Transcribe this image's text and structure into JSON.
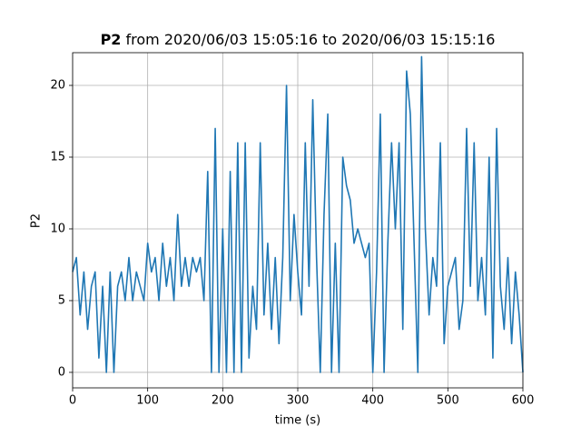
{
  "chart_data": {
    "type": "line",
    "title": [
      "P2",
      "from 2020/06/03 15:05:16 to 2020/06/03 15:15:16"
    ],
    "xlabel": "time (s)",
    "ylabel": "P2",
    "x": [
      0,
      5,
      10,
      15,
      20,
      25,
      30,
      35,
      40,
      45,
      50,
      55,
      60,
      65,
      70,
      75,
      80,
      85,
      90,
      95,
      100,
      105,
      110,
      115,
      120,
      125,
      130,
      135,
      140,
      145,
      150,
      155,
      160,
      165,
      170,
      175,
      180,
      185,
      190,
      195,
      200,
      205,
      210,
      215,
      220,
      225,
      230,
      235,
      240,
      245,
      250,
      255,
      260,
      265,
      270,
      275,
      280,
      285,
      290,
      295,
      300,
      305,
      310,
      315,
      320,
      325,
      330,
      335,
      340,
      345,
      350,
      355,
      360,
      365,
      370,
      375,
      380,
      385,
      390,
      395,
      400,
      405,
      410,
      415,
      420,
      425,
      430,
      435,
      440,
      445,
      450,
      455,
      460,
      465,
      470,
      475,
      480,
      485,
      490,
      495,
      500,
      505,
      510,
      515,
      520,
      525,
      530,
      535,
      540,
      545,
      550,
      555,
      560,
      565,
      570,
      575,
      580,
      585,
      590,
      595,
      600
    ],
    "series": [
      {
        "name": "P2",
        "color": "#1f77b4",
        "values": [
          7,
          8,
          4,
          7,
          3,
          6,
          7,
          1,
          6,
          0,
          7,
          0,
          6,
          7,
          5,
          8,
          5,
          7,
          6,
          5,
          9,
          7,
          8,
          5,
          9,
          6,
          8,
          5,
          11,
          6,
          8,
          6,
          8,
          7,
          8,
          5,
          14,
          0,
          17,
          0,
          10,
          0,
          14,
          0,
          16,
          0,
          16,
          1,
          6,
          3,
          16,
          4,
          9,
          3,
          8,
          2,
          8,
          20,
          5,
          11,
          7,
          4,
          16,
          6,
          19,
          8,
          0,
          11,
          18,
          0,
          9,
          0,
          15,
          13,
          12,
          9,
          10,
          9,
          8,
          9,
          0,
          7,
          18,
          0,
          9,
          16,
          10,
          16,
          3,
          21,
          18,
          9,
          0,
          22,
          10,
          4,
          8,
          6,
          16,
          2,
          6,
          7,
          8,
          3,
          5,
          17,
          6,
          16,
          5,
          8,
          4,
          15,
          1,
          17,
          6,
          3,
          8,
          2,
          7,
          4,
          0
        ]
      }
    ],
    "xlim": [
      0,
      600
    ],
    "xticks": [
      0,
      100,
      200,
      300,
      400,
      500,
      600
    ],
    "ylim": [
      -1.08,
      22.28
    ],
    "yticks": [
      0,
      5,
      10,
      15,
      20
    ],
    "grid": true
  }
}
